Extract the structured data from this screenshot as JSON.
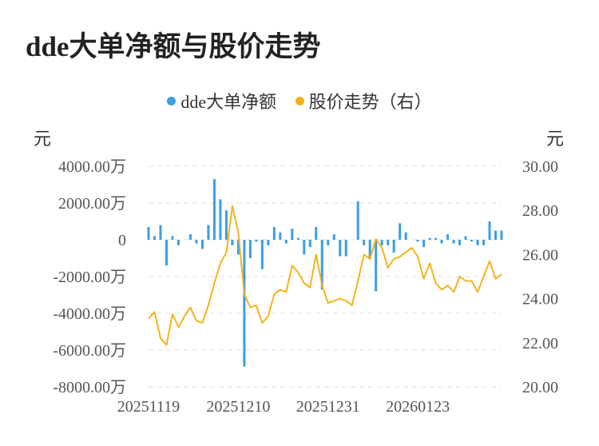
{
  "title": "dde大单净额与股价走势",
  "legend": {
    "series1": "dde大单净额",
    "series2": "股价走势（右）"
  },
  "colors": {
    "bar": "#3a9ee6",
    "line": "#f4b31c",
    "grid": "#e3e3e3"
  },
  "chart_data": {
    "type": "bar",
    "y_left": {
      "unit": "元",
      "ticks": [
        "4000.00万",
        "2000.00万",
        "0",
        "-2000.00万",
        "-4000.00万",
        "-6000.00万",
        "-8000.00万"
      ],
      "tick_values": [
        4000,
        2000,
        0,
        -2000,
        -4000,
        -6000,
        -8000
      ],
      "range": [
        -8000,
        4000
      ]
    },
    "y_right": {
      "unit": "元",
      "ticks": [
        "30.00",
        "28.00",
        "26.00",
        "24.00",
        "22.00",
        "20.00"
      ],
      "tick_values": [
        30,
        28,
        26,
        24,
        22,
        20
      ],
      "range": [
        20,
        30
      ]
    },
    "x_tick_labels": [
      {
        "index": 0,
        "label": "20251119"
      },
      {
        "index": 15,
        "label": "20251210"
      },
      {
        "index": 30,
        "label": "20251231"
      },
      {
        "index": 45,
        "label": "20260123"
      }
    ],
    "series": [
      {
        "name": "dde大单净额",
        "axis": "left",
        "values": [
          700,
          200,
          800,
          -1400,
          200,
          -300,
          0,
          300,
          -200,
          -500,
          800,
          3300,
          2200,
          1600,
          -300,
          -800,
          -6900,
          -1000,
          -100,
          -1600,
          -300,
          700,
          400,
          -200,
          600,
          100,
          -800,
          -400,
          700,
          -2700,
          -300,
          300,
          -900,
          -900,
          0,
          2100,
          -300,
          -1000,
          -2800,
          -300,
          -300,
          -700,
          900,
          400,
          0,
          -100,
          -400,
          100,
          100,
          -200,
          300,
          -200,
          -300,
          200,
          -100,
          -300,
          -300,
          1000,
          500,
          500
        ]
      },
      {
        "name": "股价走势（右）",
        "axis": "right",
        "values": [
          23.1,
          23.4,
          22.2,
          21.9,
          23.3,
          22.7,
          23.2,
          23.6,
          23.0,
          22.9,
          23.7,
          24.7,
          25.6,
          26.1,
          28.2,
          27.0,
          24.2,
          23.6,
          23.7,
          22.9,
          23.2,
          24.2,
          24.4,
          24.3,
          25.5,
          25.2,
          24.7,
          24.5,
          26.0,
          24.6,
          23.8,
          23.9,
          24.0,
          23.9,
          23.7,
          24.8,
          26.0,
          25.8,
          26.7,
          26.3,
          25.4,
          25.8,
          25.9,
          26.1,
          26.3,
          25.9,
          24.9,
          25.6,
          24.7,
          24.4,
          24.6,
          24.3,
          25.0,
          24.8,
          24.8,
          24.3,
          25.0,
          25.7,
          24.9,
          25.1
        ]
      }
    ]
  }
}
